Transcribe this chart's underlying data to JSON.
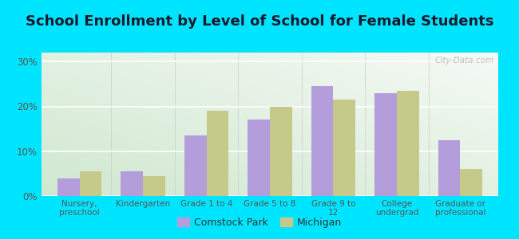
{
  "title": "School Enrollment by Level of School for Female Students",
  "categories": [
    "Nursery,\npreschool",
    "Kindergarten",
    "Grade 1 to 4",
    "Grade 5 to 8",
    "Grade 9 to\n12",
    "College\nundergrad",
    "Graduate or\nprofessional"
  ],
  "comstock_park": [
    4.0,
    5.5,
    13.5,
    17.0,
    24.5,
    23.0,
    12.5
  ],
  "michigan": [
    5.5,
    4.5,
    19.0,
    20.0,
    21.5,
    23.5,
    6.0
  ],
  "comstock_color": "#b39ddb",
  "michigan_color": "#c5c98a",
  "background_outer": "#00e5ff",
  "background_inner_bottom_left": "#d4edda",
  "background_inner_top_right": "#f0f8f0",
  "ylabel_ticks": [
    "0%",
    "10%",
    "20%",
    "30%"
  ],
  "ytick_vals": [
    0,
    10,
    20,
    30
  ],
  "ylim": [
    0,
    32
  ],
  "legend_labels": [
    "Comstock Park",
    "Michigan"
  ],
  "title_fontsize": 13,
  "bar_width": 0.35,
  "watermark": "City-Data.com"
}
